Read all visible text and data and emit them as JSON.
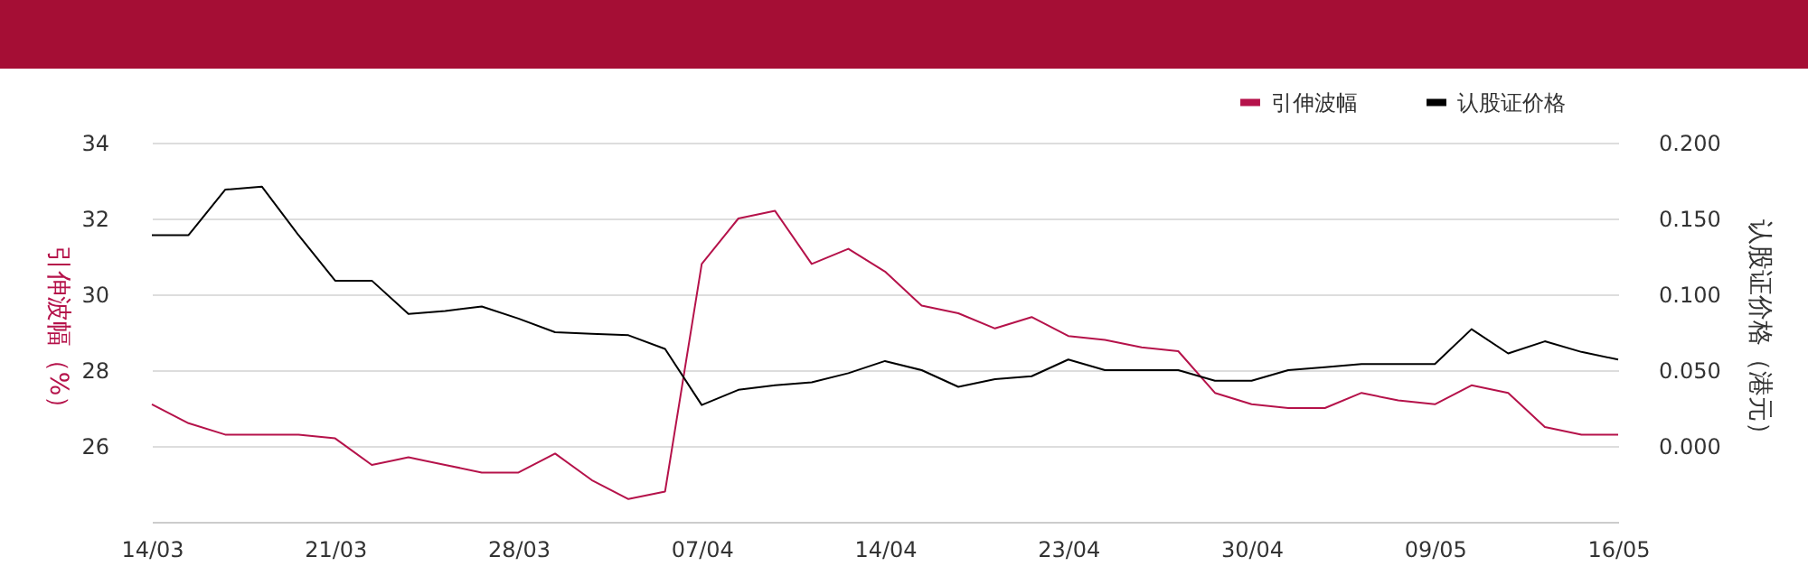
{
  "chart_data": {
    "type": "line",
    "categories": [
      "14/03",
      null,
      null,
      null,
      null,
      "21/03",
      null,
      null,
      null,
      null,
      "28/03",
      null,
      null,
      null,
      null,
      "07/04",
      null,
      null,
      null,
      null,
      "14/04",
      null,
      null,
      null,
      null,
      "23/04",
      null,
      null,
      null,
      null,
      "30/04",
      null,
      null,
      null,
      null,
      "09/05",
      null,
      null,
      null,
      null,
      "16/05"
    ],
    "series": [
      {
        "name": "引伸波幅",
        "color": "#b5124a",
        "values": [
          27.1,
          26.6,
          26.3,
          26.3,
          26.3,
          26.2,
          25.5,
          25.7,
          25.5,
          25.3,
          25.3,
          25.8,
          25.1,
          24.6,
          24.8,
          30.8,
          32.0,
          32.2,
          30.8,
          31.2,
          30.6,
          29.7,
          29.5,
          29.1,
          29.4,
          28.9,
          28.8,
          28.6,
          28.5,
          27.4,
          27.1,
          27.0,
          27.0,
          27.4,
          27.2,
          27.1,
          27.6,
          27.4,
          26.5,
          26.3,
          26.3
        ]
      },
      {
        "name": "认股证价格",
        "color": "#000000",
        "axis": "y2",
        "values": [
          0.139,
          0.139,
          0.169,
          0.171,
          0.139,
          0.109,
          0.109,
          0.087,
          0.089,
          0.092,
          0.084,
          0.075,
          0.074,
          0.073,
          0.064,
          0.027,
          0.037,
          0.04,
          0.042,
          0.048,
          0.056,
          0.05,
          0.039,
          0.044,
          0.046,
          0.057,
          0.05,
          0.05,
          0.05,
          0.043,
          0.043,
          0.05,
          0.052,
          0.054,
          0.054,
          0.054,
          0.077,
          0.061,
          0.069,
          0.062,
          0.057
        ]
      }
    ],
    "ylabel": "引伸波幅（%）",
    "y2label": "认股证价格（港元）",
    "ylim": [
      24,
      34
    ],
    "yticks": [
      26,
      28,
      30,
      32,
      34
    ],
    "y2lim": [
      -0.05,
      0.2
    ],
    "y2ticks": [
      {
        "value": 0,
        "label": "0.000"
      },
      {
        "value": 0.05,
        "label": "0.050"
      },
      {
        "value": 0.1,
        "label": "0.100"
      },
      {
        "value": 0.15,
        "label": "0.150"
      },
      {
        "value": 0.2,
        "label": "0.200"
      }
    ],
    "grid": "y",
    "legend": "top right",
    "marker": "none",
    "line_style": "solid"
  }
}
